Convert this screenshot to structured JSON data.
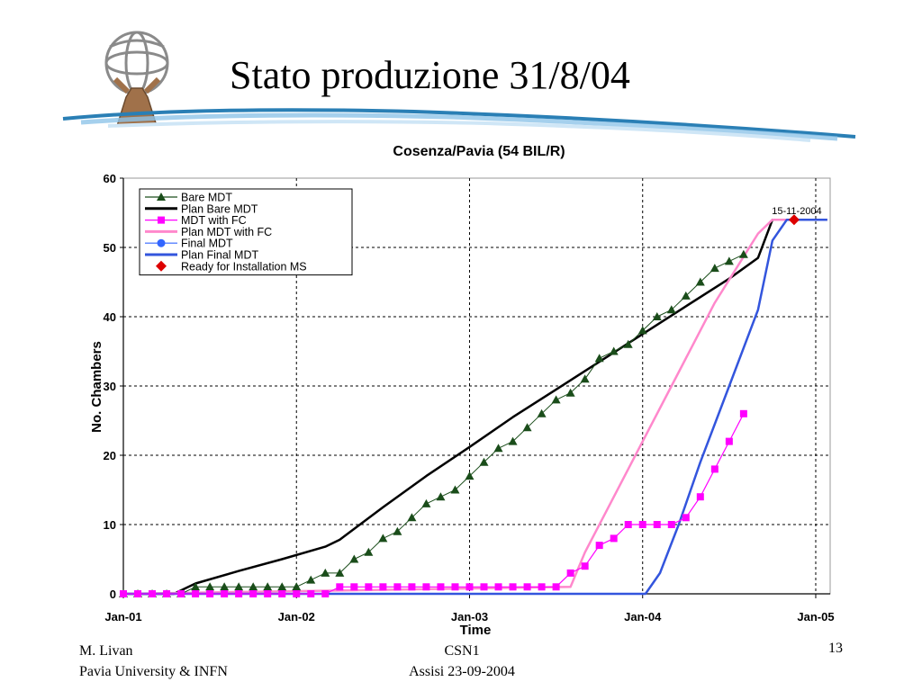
{
  "slide": {
    "title": "Stato produzione 31/8/04",
    "footer": {
      "author": "M. Livan",
      "affiliation": "Pavia University & INFN",
      "event": "CSN1",
      "venue_date": "Assisi 23-09-2004",
      "page": "13"
    }
  },
  "colors": {
    "bare": "#1a4d1a",
    "plan_bare": "#000000",
    "fc": "#ff00ff",
    "plan_fc": "#ff88cc",
    "final": "#3366ff",
    "plan_final": "#3355dd",
    "ready": "#dd0000"
  },
  "chart_data": {
    "type": "line",
    "title": "Cosenza/Pavia (54 BIL/R)",
    "xlabel": "Time",
    "ylabel": "No. Chambers",
    "x_unit": "months since Jan-01",
    "xlim": [
      0,
      49
    ],
    "ylim": [
      0,
      60
    ],
    "y_ticks": [
      0,
      10,
      20,
      30,
      40,
      50,
      60
    ],
    "x_ticks": [
      {
        "label": "Jan-01",
        "x": 0
      },
      {
        "label": "Jan-02",
        "x": 12
      },
      {
        "label": "Jan-03",
        "x": 24
      },
      {
        "label": "Jan-04",
        "x": 36
      },
      {
        "label": "Jan-05",
        "x": 48
      }
    ],
    "grid": true,
    "legend_position": "top-left",
    "annotation": {
      "text": "15-11-2004",
      "x": 46.5,
      "y": 54
    },
    "series": [
      {
        "name": "Bare MDT",
        "marker": "triangle",
        "color": "#1a4d1a",
        "x": [
          0,
          1,
          2,
          3,
          4,
          5,
          6,
          7,
          8,
          9,
          10,
          11,
          12,
          13,
          14,
          15,
          16,
          17,
          18,
          19,
          20,
          21,
          22,
          23,
          24,
          25,
          26,
          27,
          28,
          29,
          30,
          31,
          32,
          33,
          34,
          35,
          36,
          37,
          38,
          39,
          40,
          41,
          42,
          43
        ],
        "y": [
          0,
          0,
          0,
          0,
          0,
          1,
          1,
          1,
          1,
          1,
          1,
          1,
          1,
          2,
          3,
          3,
          5,
          6,
          8,
          9,
          11,
          13,
          14,
          15,
          17,
          19,
          21,
          22,
          24,
          26,
          28,
          29,
          31,
          34,
          35,
          36,
          38,
          40,
          41,
          43,
          45,
          47,
          48,
          49
        ]
      },
      {
        "name": "Plan Bare MDT",
        "marker": "none",
        "color": "#000000",
        "x": [
          0,
          3.5,
          5,
          8,
          11,
          14,
          15,
          18,
          21,
          24,
          27,
          30,
          33,
          36,
          39,
          42,
          44,
          45,
          48.8
        ],
        "y": [
          0,
          0,
          1.5,
          3.3,
          5,
          6.8,
          7.8,
          12.5,
          17,
          21.2,
          25.5,
          29.5,
          33.5,
          37.5,
          41.5,
          45.5,
          48.5,
          54,
          54
        ]
      },
      {
        "name": "MDT with FC",
        "marker": "square",
        "color": "#ff00ff",
        "x": [
          0,
          1,
          2,
          3,
          4,
          5,
          6,
          7,
          8,
          9,
          10,
          11,
          12,
          13,
          14,
          15,
          16,
          17,
          18,
          19,
          20,
          21,
          22,
          23,
          24,
          25,
          26,
          27,
          28,
          29,
          30,
          31,
          32,
          33,
          34,
          35,
          36,
          37,
          38,
          39,
          40,
          41,
          42,
          43
        ],
        "y": [
          0,
          0,
          0,
          0,
          0,
          0,
          0,
          0,
          0,
          0,
          0,
          0,
          0,
          0,
          0,
          1,
          1,
          1,
          1,
          1,
          1,
          1,
          1,
          1,
          1,
          1,
          1,
          1,
          1,
          1,
          1,
          3,
          4,
          7,
          8,
          10,
          10,
          10,
          10,
          11,
          14,
          18,
          22,
          26
        ]
      },
      {
        "name": "Plan MDT with FC",
        "marker": "none",
        "color": "#ff88cc",
        "x": [
          0,
          31,
          32,
          35,
          38,
          41,
          44,
          45,
          46.5,
          48.8
        ],
        "y": [
          0,
          1,
          6,
          18,
          30,
          42,
          52,
          54,
          54,
          54
        ]
      },
      {
        "name": "Final MDT",
        "marker": "circle",
        "color": "#3366ff",
        "x": [],
        "y": []
      },
      {
        "name": "Plan Final MDT",
        "marker": "none",
        "color": "#3355dd",
        "x": [
          0,
          36.2,
          37.2,
          38.5,
          40,
          42,
          44,
          45,
          46,
          48.8
        ],
        "y": [
          0,
          0,
          3,
          10,
          19,
          30,
          41,
          51,
          54,
          54
        ]
      },
      {
        "name": "Ready for Installation MS",
        "marker": "diamond",
        "color": "#dd0000",
        "x": [
          46.5
        ],
        "y": [
          54
        ]
      }
    ]
  }
}
